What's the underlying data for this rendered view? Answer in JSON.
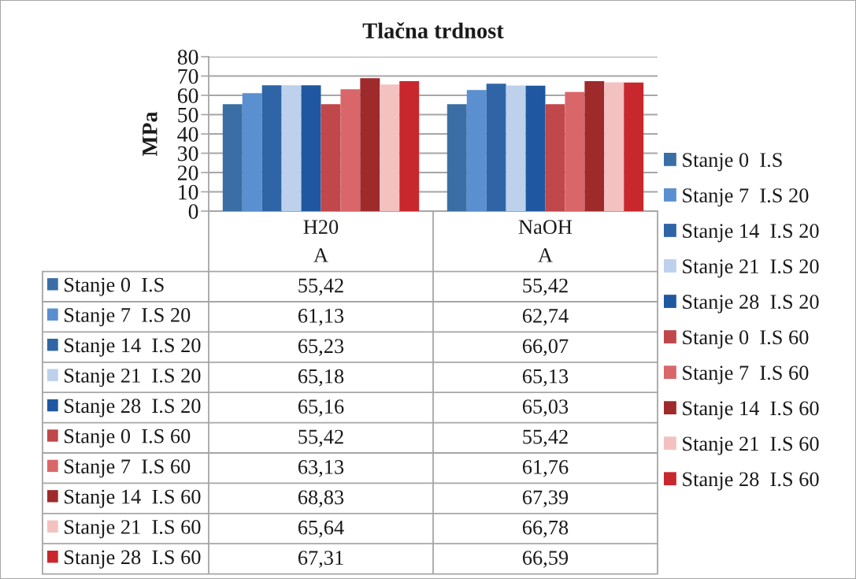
{
  "chart_data": {
    "type": "bar",
    "title": "Tlačna trdnost",
    "ylabel": "MPa",
    "categories": [
      "H20\nA",
      "NaOH\nA"
    ],
    "ylim": [
      0,
      80
    ],
    "yticks": [
      0,
      10,
      20,
      30,
      40,
      50,
      60,
      70,
      80
    ],
    "grid": "y",
    "legend": "right",
    "series": [
      {
        "name": "Stanje 0  I.S",
        "color": "#3a6ea5",
        "values": [
          55.42,
          55.42
        ],
        "value_labels": [
          "55,42",
          "55,42"
        ]
      },
      {
        "name": "Stanje 7  I.S 20",
        "color": "#5a8fd0",
        "values": [
          61.13,
          62.74
        ],
        "value_labels": [
          "61,13",
          "62,74"
        ]
      },
      {
        "name": "Stanje 14  I.S 20",
        "color": "#2f65a6",
        "values": [
          65.23,
          66.07
        ],
        "value_labels": [
          "65,23",
          "66,07"
        ]
      },
      {
        "name": "Stanje 21  I.S 20",
        "color": "#bdd1ec",
        "values": [
          65.18,
          65.13
        ],
        "value_labels": [
          "65,18",
          "65,13"
        ]
      },
      {
        "name": "Stanje 28  I.S 20",
        "color": "#1f58a0",
        "values": [
          65.16,
          65.03
        ],
        "value_labels": [
          "65,16",
          "65,03"
        ]
      },
      {
        "name": "Stanje 0  I.S 60",
        "color": "#c0474a",
        "values": [
          55.42,
          55.42
        ],
        "value_labels": [
          "55,42",
          "55,42"
        ]
      },
      {
        "name": "Stanje 7  I.S 60",
        "color": "#d9676a",
        "values": [
          63.13,
          61.76
        ],
        "value_labels": [
          "63,13",
          "61,76"
        ]
      },
      {
        "name": "Stanje 14  I.S 60",
        "color": "#9e2a2c",
        "values": [
          68.83,
          67.39
        ],
        "value_labels": [
          "68,83",
          "67,39"
        ]
      },
      {
        "name": "Stanje 21  I.S 60",
        "color": "#f4c1c1",
        "values": [
          65.64,
          66.78
        ],
        "value_labels": [
          "65,64",
          "66,78"
        ]
      },
      {
        "name": "Stanje 28  I.S 60",
        "color": "#c8272d",
        "values": [
          67.31,
          66.59
        ],
        "value_labels": [
          "67,31",
          "66,59"
        ]
      }
    ]
  }
}
